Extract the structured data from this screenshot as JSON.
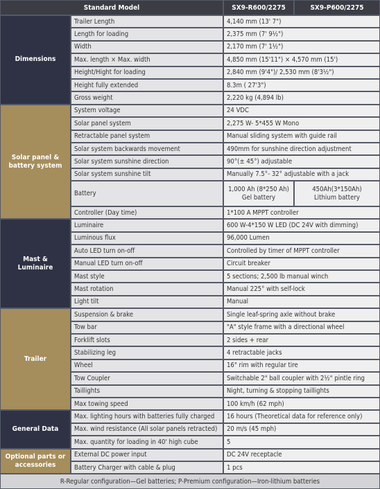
{
  "header": {
    "title": "Standard Model",
    "models": [
      "SX9-R600/2275",
      "SX9-P600/2275"
    ]
  },
  "groups": [
    {
      "label": "Dimensions",
      "rows": [
        {
          "name": "Trailer Length",
          "value": "4,140 mm (13' 7\")"
        },
        {
          "name": "Length for loading",
          "value": "2,375 mm (7' 9½\")"
        },
        {
          "name": "Width",
          "value": "2,170 mm (7' 1½\")"
        },
        {
          "name": "Max. length × Max. width",
          "value": "4,850 mm (15'11\") × 4,570 mm (15')"
        },
        {
          "name": "Height/Hight for loading",
          "value": "2,840 mm (9'4\")/ 2,530 mm (8'3½\")"
        },
        {
          "name": "Height fully extended",
          "value": "8.3m ( 27'3\")"
        },
        {
          "name": "Gross weight",
          "value": "2,220 kg (4,894 lb)"
        }
      ]
    },
    {
      "label": "Solar panel & battery system",
      "rows": [
        {
          "name": "System voltage",
          "value": "24 VDC"
        },
        {
          "name": "Solar panel system",
          "value": "2,275 W- 5*455 W Mono"
        },
        {
          "name": "Retractable panel system",
          "value": "Manual sliding system with guide rail"
        },
        {
          "name": "Solar system backwards movement",
          "value": "490mm for sunshine direction adjustment"
        },
        {
          "name": "Solar system sunshine direction",
          "value": "90°(± 45°) adjustable"
        },
        {
          "name": "Solar system sunshine tilt",
          "value": "Manually 7.5°- 32° adjustable with a jack"
        },
        {
          "name": "Battery",
          "values": [
            [
              "1,000 Ah (8*250 Ah)",
              "Gel battery"
            ],
            [
              "450Ah(3*150Ah)",
              "Lithium battery"
            ]
          ]
        },
        {
          "name": "Controller (Day time)",
          "value": "1*100 A MPPT controller"
        }
      ]
    },
    {
      "label": "Mast & Luminaire",
      "rows": [
        {
          "name": "Luminaire",
          "value": "600 W-4*150 W LED (DC 24V with dimming)"
        },
        {
          "name": "Luminous flux",
          "value": "96,000 Lumen"
        },
        {
          "name": "Auto LED turn on-off",
          "value": "Controlled by timer of MPPT controller"
        },
        {
          "name": "Manual LED turn on-off",
          "value": "Circuit breaker"
        },
        {
          "name": "Mast style",
          "value": "5 sections; 2,500 lb manual winch"
        },
        {
          "name": "Mast rotation",
          "value": "Manual 225° with self-lock"
        },
        {
          "name": "Light tilt",
          "value": "Manual"
        }
      ]
    },
    {
      "label": "Trailer",
      "rows": [
        {
          "name": "Suspension & brake",
          "value": "Single leaf-spring axle without brake"
        },
        {
          "name": "Tow bar",
          "value": "\"A\" style frame with a directional wheel"
        },
        {
          "name": "Forklift slots",
          "value": "2 sides + rear"
        },
        {
          "name": "Stabilizing leg",
          "value": "4 retractable jacks"
        },
        {
          "name": "Wheel",
          "value": "16\" rim with regular tire"
        },
        {
          "name": "Tow Coupler",
          "value": "Switchable 2\" ball coupler with 2½\" pintle ring"
        },
        {
          "name": "Taillights",
          "value": "Night, turning & stopping taillights"
        },
        {
          "name": "Max towing speed",
          "value": "100 km/h (62 mph)"
        }
      ]
    },
    {
      "label": "General Data",
      "rows": [
        {
          "name": "Max. lighting hours with batteries fully charged",
          "value": "16 hours (Theoretical data for reference only)"
        },
        {
          "name": "Max. wind resistance (All solar panels retracted)",
          "value": "20 m/s (45 mph)"
        },
        {
          "name": "Max. quantity for loading in 40' high cube",
          "value": "5"
        }
      ]
    },
    {
      "label": "Optional parts or accessories",
      "rows": [
        {
          "name": "External DC power input",
          "value": "DC 24V receptacle"
        },
        {
          "name": "Battery Charger with cable & plug",
          "value": "1 pcs"
        }
      ]
    }
  ],
  "footer": "R-Regular configuration—Gel batteries; P-Premium configuration—Iron-lithium batteries"
}
